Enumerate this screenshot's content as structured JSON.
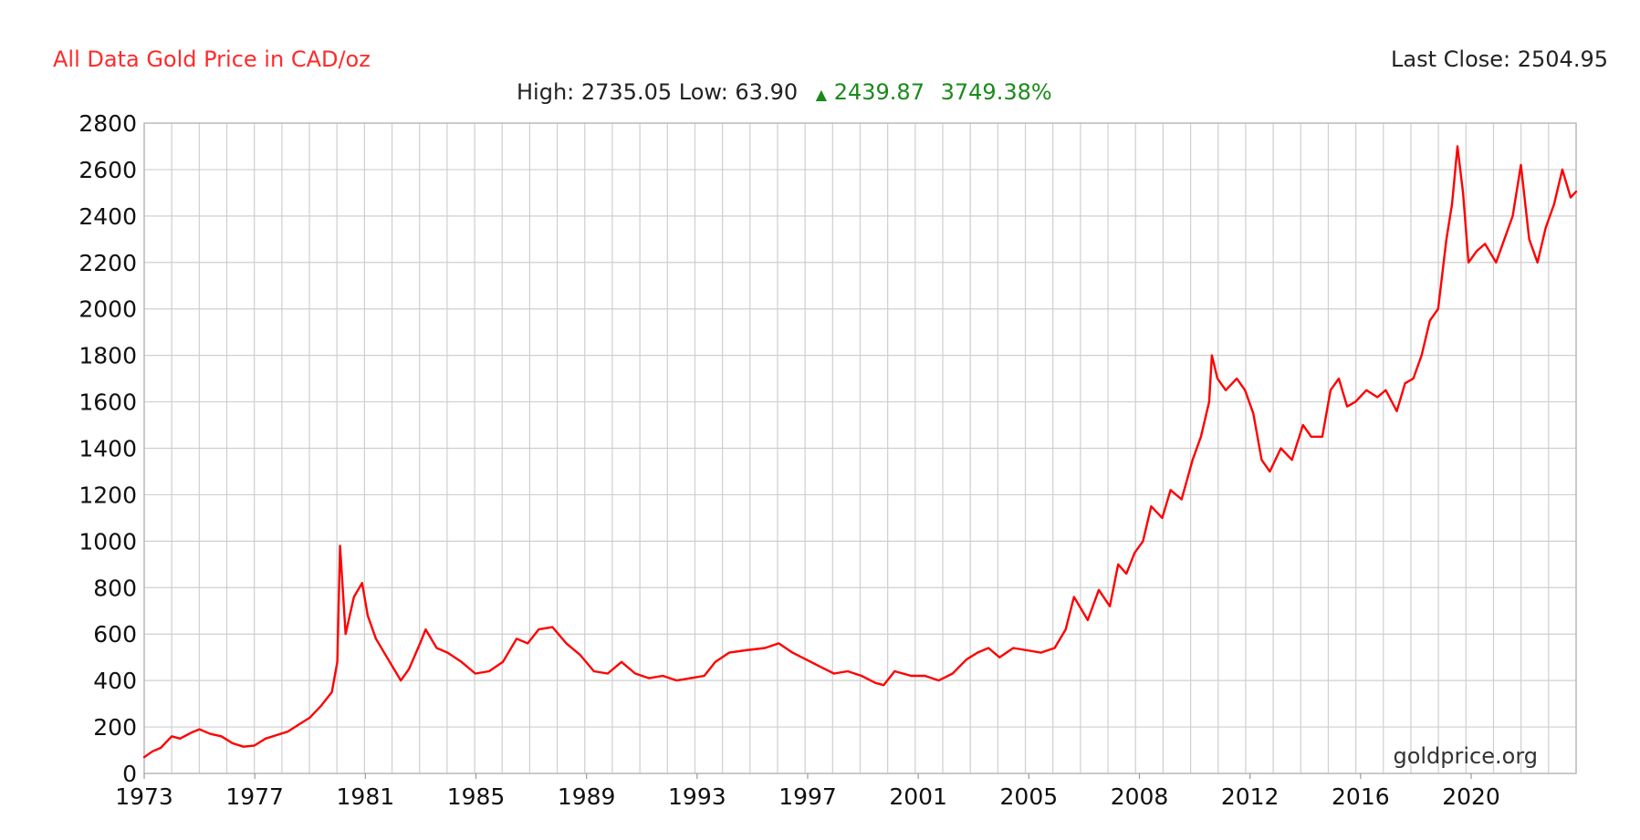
{
  "header": {
    "title": "All Data Gold Price in CAD/oz",
    "title_color": "#ff2a2a",
    "last_close_label": "Last Close: 2504.95",
    "high_low_label": "High: 2735.05 Low: 63.90",
    "change_arrow": "up-triangle-icon",
    "change_value": "2439.87",
    "change_percent": "3749.38%",
    "change_color": "#1a8a1a"
  },
  "watermark": "goldprice.org",
  "chart_data": {
    "type": "line",
    "title": "All Data Gold Price in CAD/oz",
    "xlabel": "",
    "ylabel": "",
    "x_tick_labels": [
      "1973",
      "1977",
      "1981",
      "1985",
      "1989",
      "1993",
      "1997",
      "2001",
      "2005",
      "2008",
      "2012",
      "2016",
      "2020"
    ],
    "y_ticks": [
      0,
      200,
      400,
      600,
      800,
      1000,
      1200,
      1400,
      1600,
      1800,
      2000,
      2200,
      2400,
      2600,
      2800
    ],
    "ylim": [
      0,
      2800
    ],
    "xlim": [
      1973.0,
      2024.9
    ],
    "grid": true,
    "line_color": "#ff0000",
    "series": [
      {
        "x": [
          1973.0,
          1973.3,
          1973.6,
          1974.0,
          1974.3,
          1974.7,
          1975.0,
          1975.4,
          1975.8,
          1976.2,
          1976.6,
          1977.0,
          1977.4,
          1977.8,
          1978.2,
          1978.6,
          1979.0,
          1979.4,
          1979.8,
          1980.0,
          1980.1,
          1980.3,
          1980.6,
          1980.9,
          1981.1,
          1981.4,
          1981.8,
          1982.3,
          1982.6,
          1983.0,
          1983.2,
          1983.6,
          1984.0,
          1984.5,
          1985.0,
          1985.5,
          1986.0,
          1986.5,
          1986.9,
          1987.3,
          1987.8,
          1988.3,
          1988.8,
          1989.3,
          1989.8,
          1990.3,
          1990.8,
          1991.3,
          1991.8,
          1992.3,
          1992.8,
          1993.3,
          1993.7,
          1994.2,
          1994.8,
          1995.5,
          1996.0,
          1996.5,
          1997.0,
          1997.5,
          1998.0,
          1998.5,
          1999.0,
          1999.5,
          1999.8,
          2000.2,
          2000.8,
          2001.3,
          2001.8,
          2002.3,
          2002.8,
          2003.2,
          2003.6,
          2004.0,
          2004.5,
          2005.0,
          2005.5,
          2006.0,
          2006.4,
          2006.7,
          2007.2,
          2007.6,
          2008.0,
          2008.3,
          2008.6,
          2008.9,
          2009.2,
          2009.5,
          2009.9,
          2010.2,
          2010.6,
          2011.0,
          2011.3,
          2011.6,
          2011.7,
          2011.9,
          2012.2,
          2012.6,
          2012.9,
          2013.2,
          2013.5,
          2013.8,
          2014.2,
          2014.6,
          2015.0,
          2015.3,
          2015.7,
          2016.0,
          2016.3,
          2016.6,
          2016.9,
          2017.3,
          2017.7,
          2018.0,
          2018.4,
          2018.7,
          2019.0,
          2019.3,
          2019.6,
          2019.9,
          2020.2,
          2020.4,
          2020.6,
          2020.8,
          2021.0,
          2021.3,
          2021.6,
          2022.0,
          2022.3,
          2022.6,
          2022.9,
          2023.2,
          2023.5,
          2023.8,
          2024.1,
          2024.4,
          2024.7,
          2024.9
        ],
        "y": [
          70,
          95,
          110,
          160,
          150,
          175,
          190,
          170,
          160,
          130,
          115,
          120,
          150,
          165,
          180,
          210,
          240,
          290,
          350,
          480,
          980,
          600,
          760,
          820,
          680,
          580,
          500,
          400,
          450,
          560,
          620,
          540,
          520,
          480,
          430,
          440,
          480,
          580,
          560,
          620,
          630,
          560,
          510,
          440,
          430,
          480,
          430,
          410,
          420,
          400,
          410,
          420,
          480,
          520,
          530,
          540,
          560,
          520,
          490,
          460,
          430,
          440,
          420,
          390,
          380,
          440,
          420,
          420,
          400,
          430,
          490,
          520,
          540,
          500,
          540,
          530,
          520,
          540,
          620,
          760,
          660,
          790,
          720,
          900,
          860,
          950,
          1000,
          1150,
          1100,
          1220,
          1180,
          1350,
          1450,
          1600,
          1800,
          1700,
          1650,
          1700,
          1650,
          1550,
          1350,
          1300,
          1400,
          1350,
          1500,
          1450,
          1450,
          1650,
          1700,
          1580,
          1600,
          1650,
          1620,
          1650,
          1560,
          1680,
          1700,
          1800,
          1950,
          2000,
          2300,
          2450,
          2700,
          2500,
          2200,
          2250,
          2280,
          2200,
          2300,
          2400,
          2620,
          2300,
          2200,
          2350,
          2450,
          2600,
          2480,
          2505
        ]
      }
    ]
  }
}
